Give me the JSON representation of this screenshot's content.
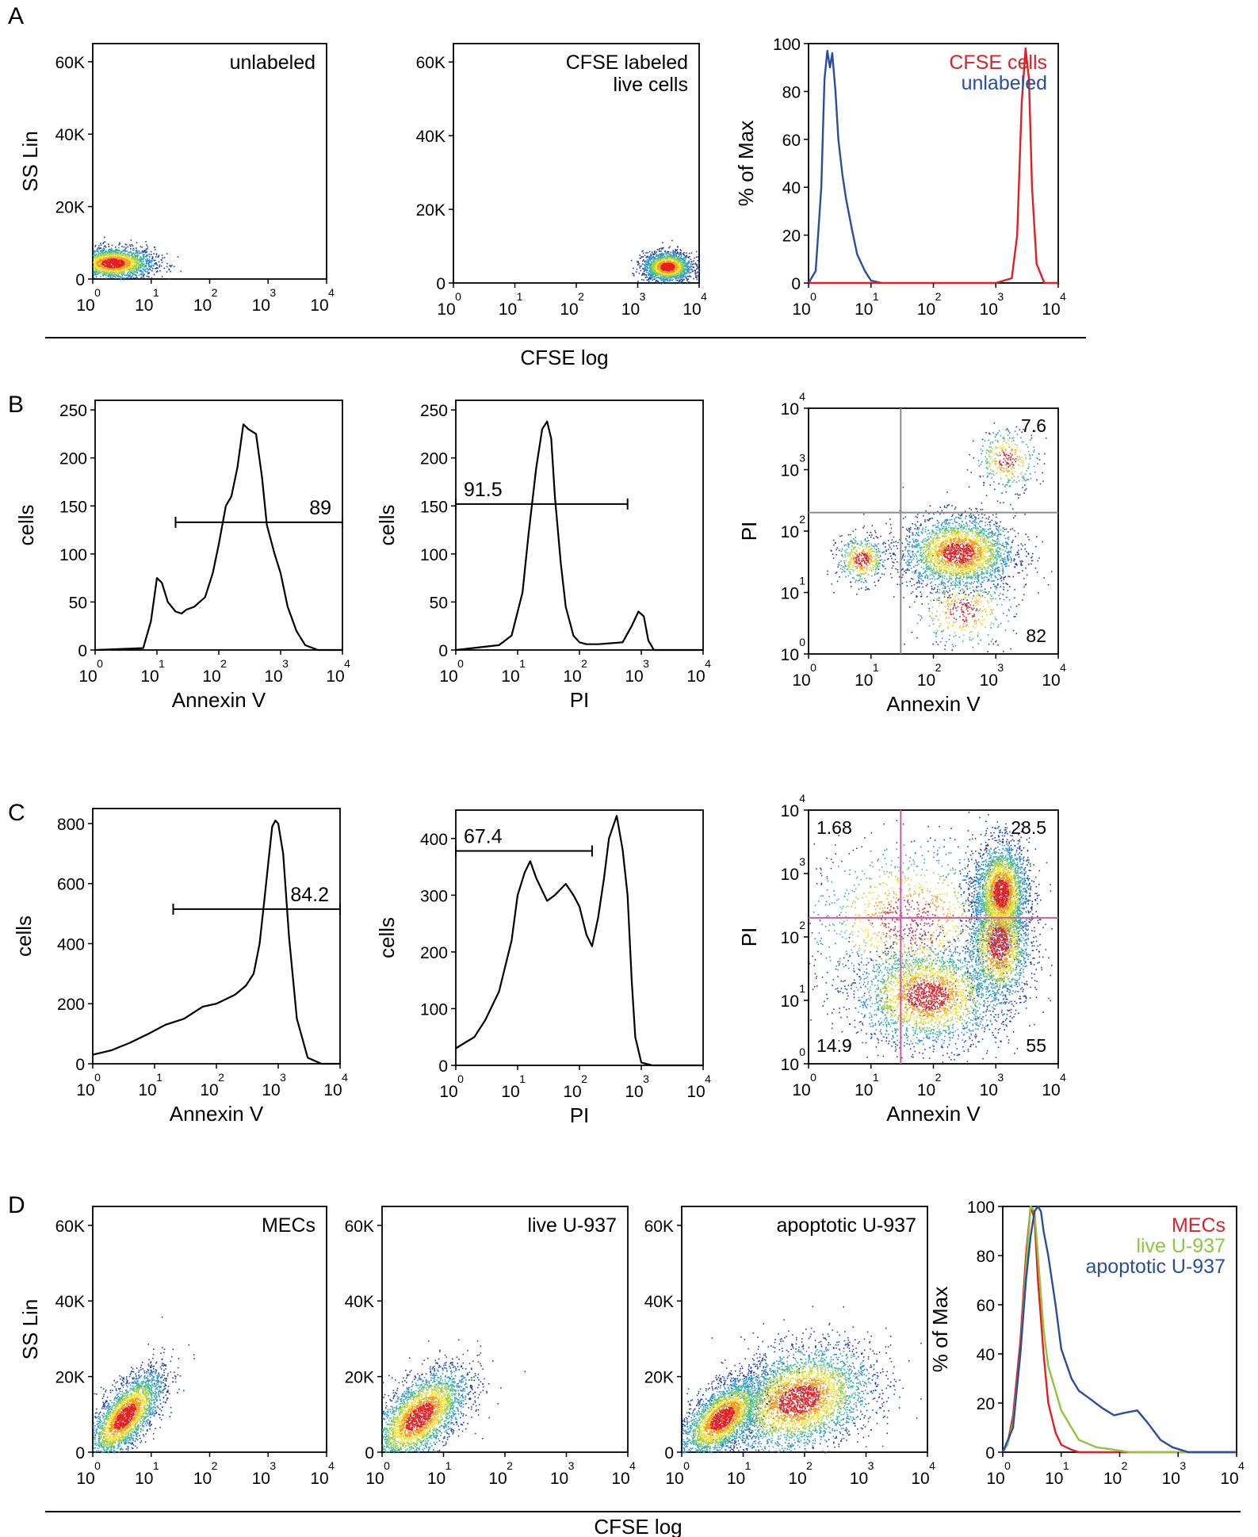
{
  "figure": {
    "panel_letters": [
      "A",
      "B",
      "C",
      "D"
    ],
    "footer_x_labels": {
      "A": "CFSE log",
      "D": "CFSE log"
    }
  },
  "colors": {
    "blue": "#2b4d9f",
    "red": "#e31e24",
    "green": "#8dc63f",
    "gate_gray": "#8c8c8c",
    "gate_pink": "#d05aa5",
    "density": [
      "#1f3ea8",
      "#2f8fd6",
      "#3fb8a0",
      "#9ecf45",
      "#f0e030",
      "#f39c1e",
      "#e31e24"
    ]
  },
  "chart_data": [
    {
      "id": "A1",
      "type": "scatter",
      "label": "unlabeled",
      "ylabel": "SS Lin",
      "xlabel": "",
      "xscale": "log",
      "xlim": [
        1,
        10000
      ],
      "ylim": [
        0,
        65000
      ],
      "yticks": [
        "0",
        "20K",
        "40K",
        "60K"
      ],
      "populations": [
        {
          "x_center": 2.2,
          "y_center": 4500,
          "x_spread_decades": 0.35,
          "y_spread": 2200,
          "n": 2200
        }
      ],
      "color_map": "density"
    },
    {
      "id": "A2",
      "type": "scatter",
      "label": "CFSE labeled\nlive cells",
      "ylabel": "",
      "xlabel": "",
      "xscale": "log",
      "xlim": [
        1,
        10000
      ],
      "ylim": [
        0,
        65000
      ],
      "yticks": [
        "0",
        "20K",
        "40K",
        "60K"
      ],
      "populations": [
        {
          "x_center": 3000,
          "y_center": 4500,
          "x_spread_decades": 0.2,
          "y_spread": 2000,
          "n": 1800
        }
      ],
      "color_map": "density"
    },
    {
      "id": "A3",
      "type": "line",
      "ylabel": "% of Max",
      "xlabel": "",
      "xscale": "log",
      "xlim": [
        1,
        10000
      ],
      "ylim": [
        0,
        100
      ],
      "yticks": [
        "0",
        "20",
        "40",
        "60",
        "80",
        "100"
      ],
      "legend": [
        "CFSE cells",
        "unlabeled"
      ],
      "series": [
        {
          "name": "unlabeled",
          "color": "blue",
          "x": [
            1,
            1.3,
            1.6,
            1.8,
            2.0,
            2.2,
            2.4,
            2.7,
            3.0,
            3.5,
            4.0,
            5.0,
            6.0,
            8.0,
            10,
            15
          ],
          "y": [
            0,
            5,
            40,
            85,
            97,
            90,
            96,
            80,
            60,
            45,
            35,
            22,
            12,
            5,
            1,
            0
          ]
        },
        {
          "name": "CFSE cells",
          "color": "red",
          "x": [
            1,
            1000,
            1800,
            2200,
            2600,
            3000,
            3400,
            3800,
            4500,
            6000,
            10000
          ],
          "y": [
            0,
            0,
            2,
            20,
            75,
            98,
            85,
            40,
            8,
            0,
            0
          ]
        }
      ]
    },
    {
      "id": "B1",
      "type": "histogram",
      "ylabel": "cells",
      "xlabel": "Annexin V",
      "xscale": "log",
      "xlim": [
        1,
        10000
      ],
      "ylim": [
        0,
        260
      ],
      "yticks": [
        "0",
        "50",
        "100",
        "150",
        "200",
        "250"
      ],
      "gate": {
        "label": "89",
        "x_from": 20,
        "x_to": 10000,
        "y": 133
      },
      "series": [
        {
          "x": [
            1,
            6,
            8,
            10,
            12,
            15,
            20,
            25,
            30,
            40,
            60,
            80,
            100,
            130,
            160,
            200,
            250,
            300,
            400,
            500,
            600,
            800,
            1000,
            1300,
            1800,
            2500,
            4000,
            10000
          ],
          "y": [
            0,
            2,
            30,
            75,
            70,
            50,
            40,
            38,
            42,
            45,
            55,
            80,
            110,
            150,
            160,
            190,
            235,
            230,
            225,
            180,
            130,
            100,
            80,
            45,
            20,
            5,
            0,
            0
          ]
        }
      ]
    },
    {
      "id": "B2",
      "type": "histogram",
      "ylabel": "cells",
      "xlabel": "PI",
      "xscale": "log",
      "xlim": [
        1,
        10000
      ],
      "ylim": [
        0,
        260
      ],
      "yticks": [
        "0",
        "50",
        "100",
        "150",
        "200",
        "250"
      ],
      "gate": {
        "label": "91.5",
        "x_from": 1,
        "x_to": 600,
        "y": 152
      },
      "series": [
        {
          "x": [
            1,
            5,
            8,
            12,
            15,
            20,
            25,
            30,
            35,
            40,
            50,
            60,
            80,
            100,
            130,
            200,
            500,
            700,
            900,
            1100,
            1300,
            1600,
            10000
          ],
          "y": [
            0,
            5,
            15,
            60,
            120,
            190,
            230,
            238,
            220,
            160,
            90,
            45,
            15,
            8,
            6,
            6,
            8,
            25,
            40,
            35,
            10,
            0,
            0
          ]
        }
      ]
    },
    {
      "id": "B3",
      "type": "scatter",
      "ylabel": "PI",
      "xlabel": "Annexin V",
      "xscale": "log",
      "yscale": "log",
      "xlim": [
        1,
        10000
      ],
      "ylim": [
        1,
        10000
      ],
      "quadrant_gate": {
        "x": 30,
        "y": 200,
        "color": "gate_gray"
      },
      "quadrant_values": {
        "upper_right": "7.6",
        "lower_right": "82"
      },
      "populations": [
        {
          "x_center": 250,
          "y_center": 45,
          "x_spread_decades": 0.45,
          "y_spread_decades": 0.3,
          "n": 2600
        },
        {
          "x_center": 7,
          "y_center": 35,
          "x_spread_decades": 0.2,
          "y_spread_decades": 0.2,
          "n": 500
        },
        {
          "x_center": 1500,
          "y_center": 1500,
          "x_spread_decades": 0.25,
          "y_spread_decades": 0.25,
          "n": 350
        },
        {
          "x_center": 300,
          "y_center": 5,
          "x_spread_decades": 0.4,
          "y_spread_decades": 0.3,
          "n": 400
        }
      ],
      "color_map": "density"
    },
    {
      "id": "C1",
      "type": "histogram",
      "ylabel": "cells",
      "xlabel": "Annexin V",
      "xscale": "log",
      "xlim": [
        1,
        10000
      ],
      "ylim": [
        0,
        850
      ],
      "yticks": [
        "0",
        "200",
        "400",
        "600",
        "800"
      ],
      "gate": {
        "label": "84.2",
        "x_from": 20,
        "x_to": 10000,
        "y": 515
      },
      "series": [
        {
          "x": [
            1,
            2,
            4,
            8,
            15,
            30,
            60,
            100,
            200,
            300,
            400,
            500,
            600,
            700,
            800,
            900,
            1000,
            1200,
            1500,
            2000,
            3000,
            5000,
            10000
          ],
          "y": [
            30,
            45,
            70,
            100,
            130,
            150,
            190,
            200,
            230,
            260,
            300,
            400,
            550,
            680,
            790,
            810,
            800,
            700,
            420,
            150,
            20,
            0,
            0
          ]
        }
      ]
    },
    {
      "id": "C2",
      "type": "histogram",
      "ylabel": "cells",
      "xlabel": "PI",
      "xscale": "log",
      "xlim": [
        1,
        10000
      ],
      "ylim": [
        0,
        450
      ],
      "yticks": [
        "0",
        "100",
        "200",
        "300",
        "400"
      ],
      "gate": {
        "label": "67.4",
        "x_from": 1,
        "x_to": 160,
        "y": 378
      },
      "series": [
        {
          "x": [
            1,
            2,
            3,
            5,
            8,
            10,
            13,
            16,
            20,
            30,
            40,
            60,
            80,
            100,
            130,
            160,
            200,
            250,
            300,
            400,
            500,
            600,
            700,
            800,
            1000,
            1500,
            10000
          ],
          "y": [
            30,
            50,
            80,
            130,
            220,
            300,
            340,
            360,
            330,
            290,
            300,
            320,
            300,
            280,
            230,
            210,
            260,
            330,
            400,
            440,
            380,
            300,
            150,
            50,
            5,
            0,
            0
          ]
        }
      ]
    },
    {
      "id": "C3",
      "type": "scatter",
      "ylabel": "PI",
      "xlabel": "Annexin V",
      "xscale": "log",
      "yscale": "log",
      "xlim": [
        1,
        10000
      ],
      "ylim": [
        1,
        10000
      ],
      "quadrant_gate": {
        "x": 30,
        "y": 200,
        "color": "gate_pink"
      },
      "quadrant_values": {
        "upper_left": "1.68",
        "upper_right": "28.5",
        "lower_left": "14.9",
        "lower_right": "55"
      },
      "populations": [
        {
          "x_center": 1200,
          "y_center": 500,
          "x_spread_decades": 0.22,
          "y_spread_decades": 0.4,
          "n": 2600
        },
        {
          "x_center": 1100,
          "y_center": 80,
          "x_spread_decades": 0.25,
          "y_spread_decades": 0.5,
          "n": 1800
        },
        {
          "x_center": 80,
          "y_center": 12,
          "x_spread_decades": 0.6,
          "y_spread_decades": 0.4,
          "n": 2600
        },
        {
          "x_center": 40,
          "y_center": 200,
          "x_spread_decades": 0.8,
          "y_spread_decades": 0.6,
          "n": 1200
        }
      ],
      "color_map": "density"
    },
    {
      "id": "D1",
      "type": "scatter",
      "label": "MECs",
      "ylabel": "SS Lin",
      "xlabel": "",
      "xscale": "log",
      "xlim": [
        1,
        10000
      ],
      "ylim": [
        0,
        65000
      ],
      "yticks": [
        "0",
        "20K",
        "40K",
        "60K"
      ],
      "populations": [
        {
          "x_center": 3.5,
          "y_center": 9500,
          "x_spread_decades": 0.33,
          "y_spread": 6000,
          "corr": 0.7,
          "n": 2800
        }
      ],
      "color_map": "density"
    },
    {
      "id": "D2",
      "type": "scatter",
      "label": "live U-937",
      "ylabel": "",
      "xlabel": "",
      "xscale": "log",
      "xlim": [
        1,
        10000
      ],
      "ylim": [
        0,
        65000
      ],
      "yticks": [
        "0",
        "20K",
        "40K",
        "60K"
      ],
      "populations": [
        {
          "x_center": 4,
          "y_center": 9500,
          "x_spread_decades": 0.4,
          "y_spread": 6500,
          "corr": 0.6,
          "n": 3000
        }
      ],
      "color_map": "density"
    },
    {
      "id": "D3",
      "type": "scatter",
      "label": "apoptotic U-937",
      "ylabel": "",
      "xlabel": "",
      "xscale": "log",
      "xlim": [
        1,
        10000
      ],
      "ylim": [
        0,
        65000
      ],
      "yticks": [
        "0",
        "20K",
        "40K",
        "60K"
      ],
      "populations": [
        {
          "x_center": 4.5,
          "y_center": 9000,
          "x_spread_decades": 0.35,
          "y_spread": 5500,
          "corr": 0.6,
          "n": 2800
        },
        {
          "x_center": 80,
          "y_center": 14000,
          "x_spread_decades": 0.6,
          "y_spread": 7000,
          "corr": 0.3,
          "n": 3600
        }
      ],
      "color_map": "density"
    },
    {
      "id": "D4",
      "type": "line",
      "ylabel": "% of Max",
      "xlabel": "",
      "xscale": "log",
      "xlim": [
        1,
        10000
      ],
      "ylim": [
        0,
        100
      ],
      "yticks": [
        "0",
        "20",
        "40",
        "60",
        "80",
        "100"
      ],
      "legend": [
        "MECs",
        "live U-937",
        "apoptotic U-937"
      ],
      "series": [
        {
          "name": "MECs",
          "color": "red",
          "x": [
            1,
            1.2,
            1.5,
            2,
            2.5,
            3,
            3.5,
            4,
            5,
            6,
            8,
            10,
            15,
            20,
            40,
            10000
          ],
          "y": [
            0,
            3,
            15,
            45,
            80,
            100,
            95,
            70,
            40,
            20,
            8,
            3,
            1,
            0,
            0,
            0
          ]
        },
        {
          "name": "live U-937",
          "color": "green",
          "x": [
            1,
            1.2,
            1.5,
            2,
            2.5,
            3,
            3.5,
            4,
            5,
            6,
            8,
            10,
            15,
            20,
            40,
            80,
            150,
            10000
          ],
          "y": [
            0,
            3,
            12,
            40,
            75,
            100,
            98,
            80,
            50,
            35,
            25,
            17,
            10,
            5,
            2,
            1,
            0,
            0
          ]
        },
        {
          "name": "apoptotic U-937",
          "color": "blue",
          "x": [
            1,
            1.5,
            2,
            2.5,
            3,
            3.5,
            4,
            4.5,
            5,
            6,
            8,
            10,
            15,
            20,
            30,
            50,
            80,
            120,
            200,
            300,
            500,
            800,
            1500,
            10000
          ],
          "y": [
            0,
            10,
            40,
            70,
            88,
            98,
            100,
            98,
            90,
            80,
            60,
            42,
            30,
            25,
            22,
            18,
            15,
            16,
            17,
            12,
            5,
            2,
            0,
            0
          ]
        }
      ]
    }
  ]
}
